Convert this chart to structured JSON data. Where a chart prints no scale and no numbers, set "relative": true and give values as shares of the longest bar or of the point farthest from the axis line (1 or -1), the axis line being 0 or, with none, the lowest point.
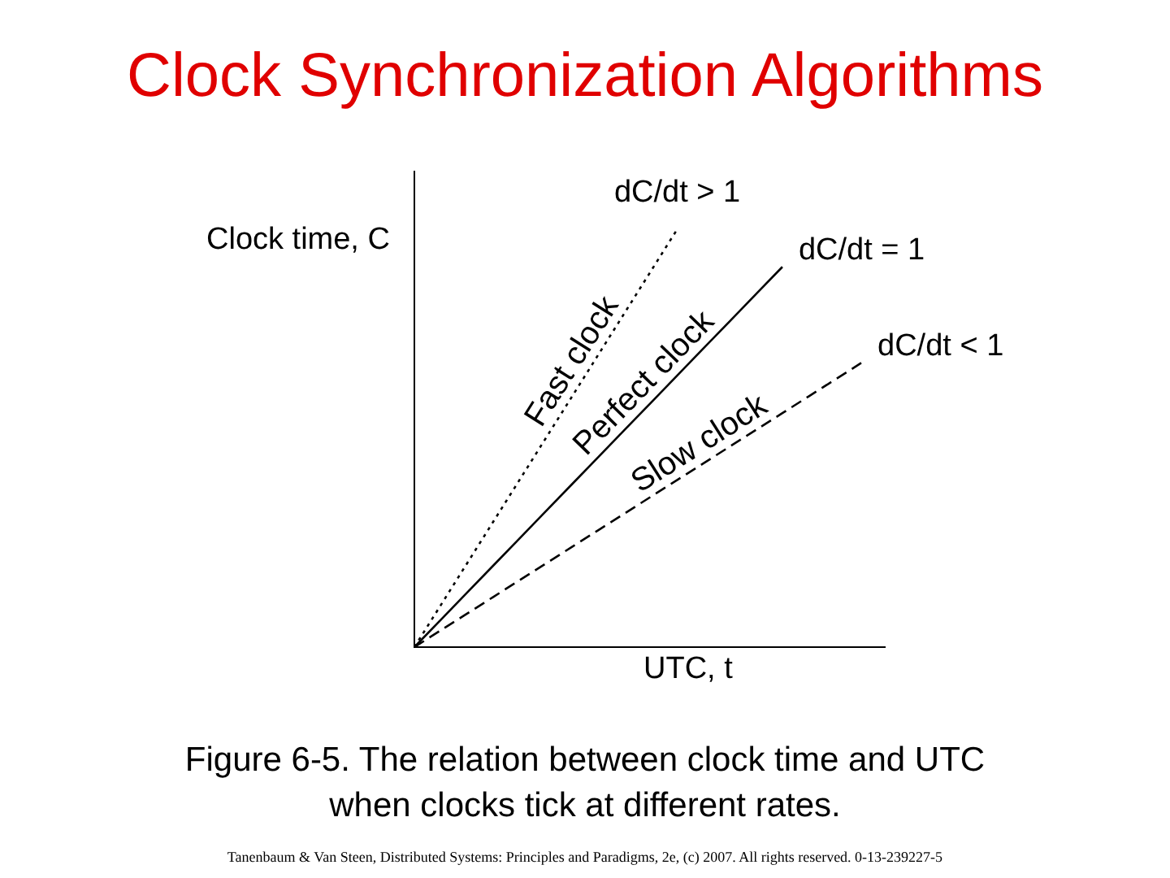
{
  "chart_data": {
    "type": "line",
    "title": "Clock Synchronization Algorithms",
    "xlabel": "UTC, t",
    "ylabel": "Clock time, C",
    "relative": true,
    "legend": false,
    "marker": "none",
    "categories": [
      null,
      null,
      null,
      null,
      null,
      null,
      null,
      null,
      null,
      null,
      null,
      null,
      null,
      null,
      null,
      null,
      null,
      null
    ],
    "series": [
      {
        "name": "Fast clock",
        "color": "#000000",
        "line_style": "dotted",
        "values": [
          0,
          0.1,
          0.2,
          0.3,
          0.4,
          0.5,
          0.6,
          0.7,
          0.8,
          0.9,
          1,
          null,
          null,
          null,
          null,
          null,
          null,
          null
        ]
      },
      {
        "name": "Perfect clock",
        "color": "#000000",
        "line_style": "solid",
        "values": [
          0,
          0.065,
          0.13,
          0.195,
          0.26,
          0.325,
          0.39,
          0.455,
          0.52,
          0.585,
          0.65,
          0.715,
          0.78,
          0.845,
          0.91,
          null,
          null,
          null
        ]
      },
      {
        "name": "Slow clock",
        "color": "#000000",
        "line_style": "dashed",
        "values": [
          0,
          0.04,
          0.08,
          0.12,
          0.16,
          0.2,
          0.24,
          0.28,
          0.32,
          0.36,
          0.4,
          0.44,
          0.48,
          0.52,
          0.56,
          0.6,
          0.64,
          0.68
        ]
      }
    ],
    "annotations": [
      "dC/dt > 1",
      "dC/dt = 1",
      "dC/dt < 1",
      "Figure 6-5. The relation between clock time and UTC when clocks tick at different rates.",
      "Tanenbaum & Van Steen, Distributed Systems: Principles and Paradigms, 2e, (c) 2007. All rights reserved. 0-13-239227-5"
    ]
  }
}
